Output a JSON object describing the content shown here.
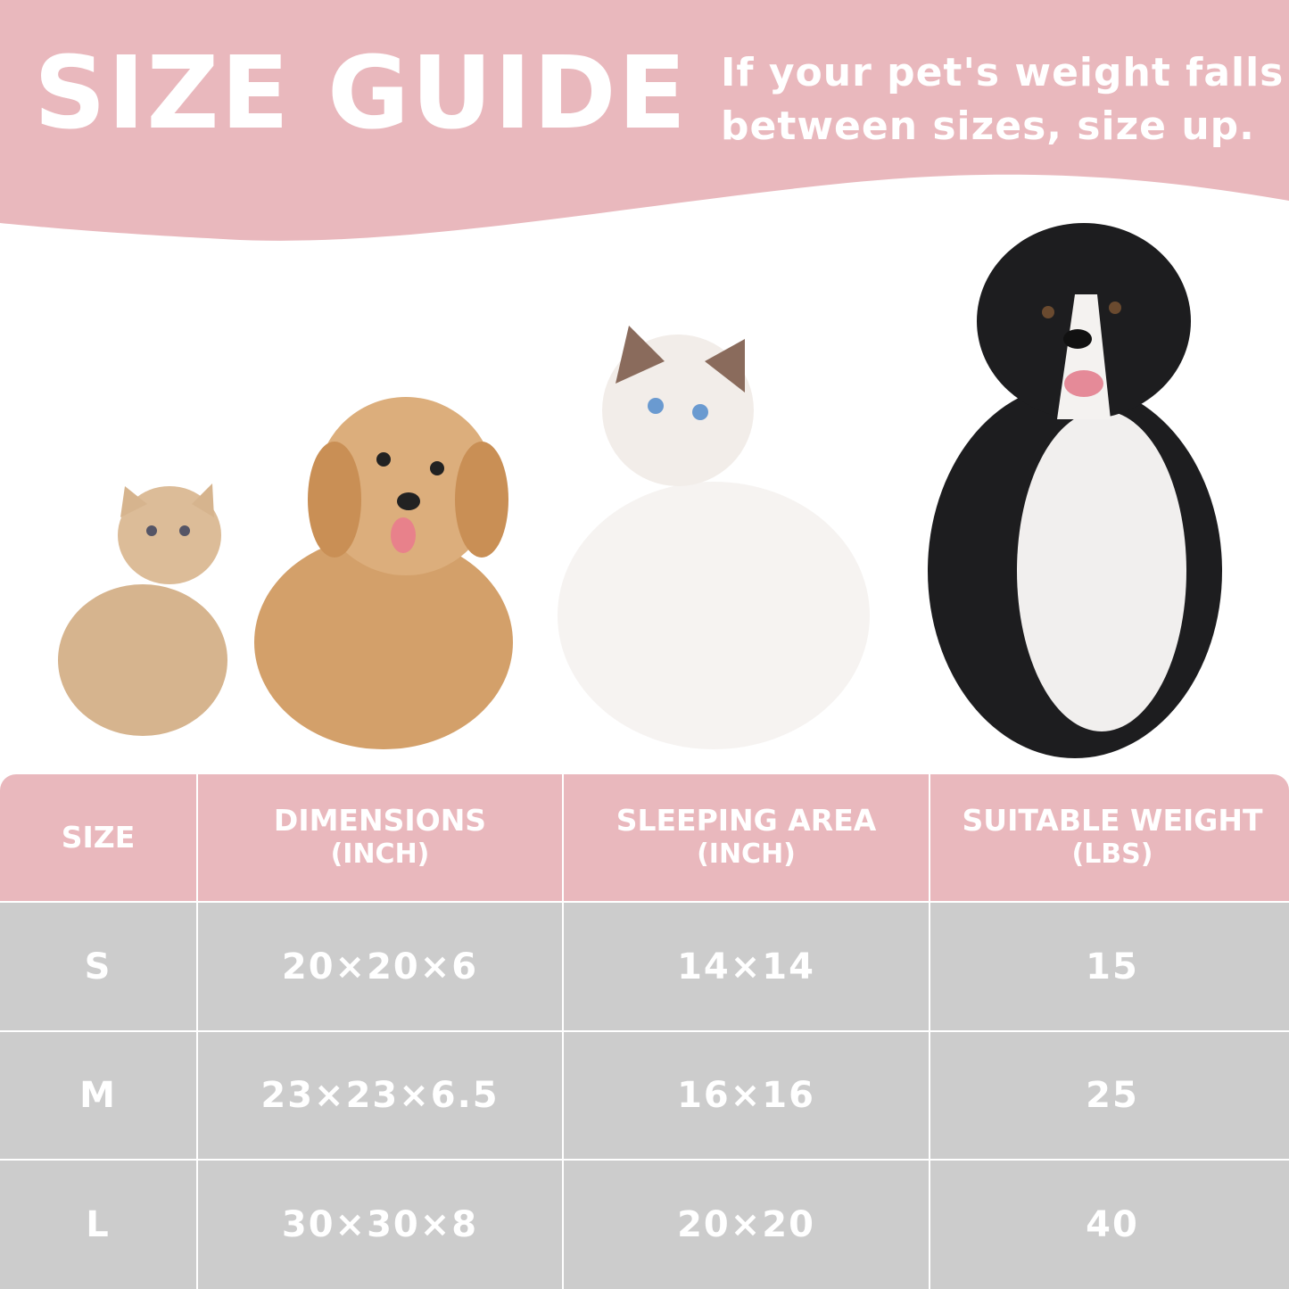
{
  "banner": {
    "title": "SIZE GUIDE",
    "subtitle_line1": "If your pet's weight falls",
    "subtitle_line2": "between sizes, size up.",
    "color": "#e9b8bd"
  },
  "pets": [
    "small-ginger-cat-icon",
    "fluffy-puppy-icon",
    "ragdoll-cat-icon",
    "border-collie-icon"
  ],
  "table": {
    "headers": [
      {
        "label": "SIZE",
        "unit": ""
      },
      {
        "label": "DIMENSIONS",
        "unit": "(INCH)"
      },
      {
        "label": "SLEEPING AREA",
        "unit": "(INCH)"
      },
      {
        "label": "SUITABLE WEIGHT",
        "unit": "(LBS)"
      }
    ],
    "rows": [
      [
        "S",
        "20×20×6",
        "14×14",
        "15"
      ],
      [
        "M",
        "23×23×6.5",
        "16×16",
        "25"
      ],
      [
        "L",
        "30×30×8",
        "20×20",
        "40"
      ]
    ],
    "header_color": "#e9b8bd",
    "body_color": "#cccccc"
  }
}
